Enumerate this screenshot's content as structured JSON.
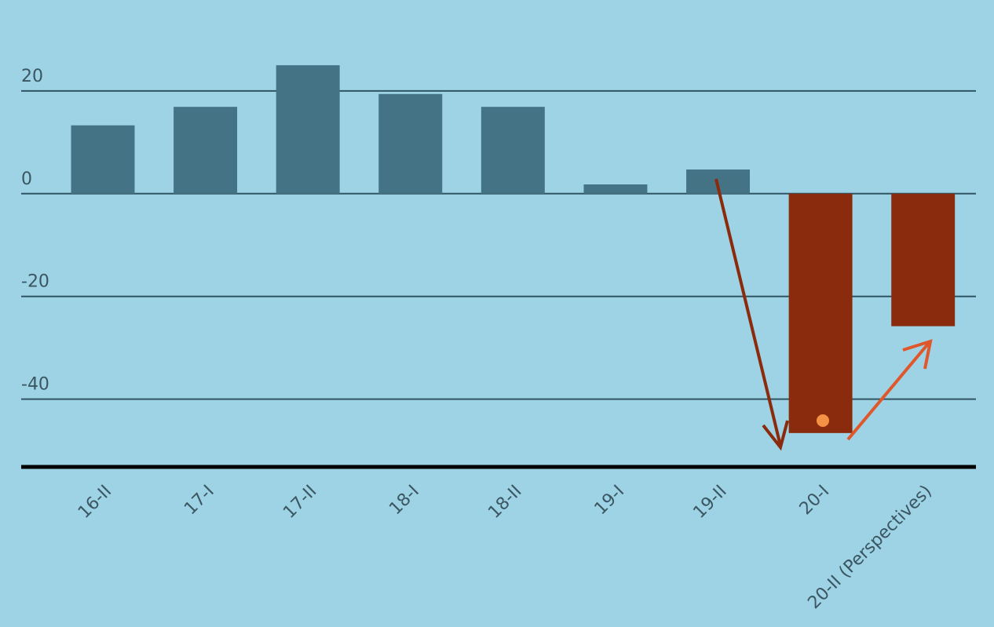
{
  "chart_data": {
    "type": "bar",
    "categories": [
      "16-II",
      "17-I",
      "17-II",
      "18-I",
      "18-II",
      "19-I",
      "19-II",
      "20-I",
      "20-II (Perspectives)"
    ],
    "values": [
      13.3,
      16.9,
      25.0,
      19.4,
      16.9,
      1.8,
      4.7,
      -46.6,
      -25.8
    ],
    "colors": [
      "#457386",
      "#457386",
      "#457386",
      "#457386",
      "#457386",
      "#457386",
      "#457386",
      "#8b2b0d",
      "#8b2b0d"
    ],
    "ylim": [
      -53.5,
      37.7
    ],
    "yticks": [
      -40,
      -20,
      0,
      20
    ],
    "grid": true
  }
}
